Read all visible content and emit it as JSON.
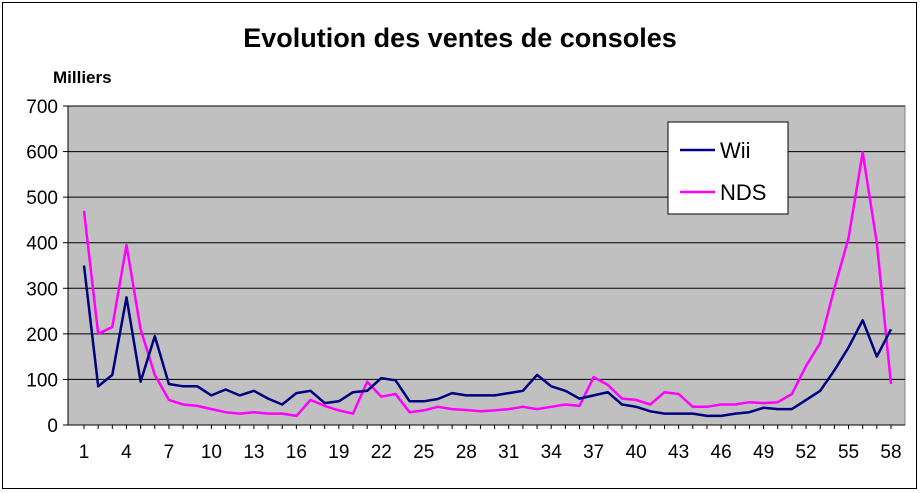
{
  "chart_data": {
    "type": "line",
    "title": "Evolution des ventes de consoles",
    "ylabel": "Milliers",
    "xlabel": "",
    "ylim": [
      0,
      700
    ],
    "yticks": [
      0,
      100,
      200,
      300,
      400,
      500,
      600,
      700
    ],
    "x": [
      1,
      2,
      3,
      4,
      5,
      6,
      7,
      8,
      9,
      10,
      11,
      12,
      13,
      14,
      15,
      16,
      17,
      18,
      19,
      20,
      21,
      22,
      23,
      24,
      25,
      26,
      27,
      28,
      29,
      30,
      31,
      32,
      33,
      34,
      35,
      36,
      37,
      38,
      39,
      40,
      41,
      42,
      43,
      44,
      45,
      46,
      47,
      48,
      49,
      50,
      51,
      52,
      53,
      54,
      55,
      56,
      57,
      58
    ],
    "xticks": [
      1,
      4,
      7,
      10,
      13,
      16,
      19,
      22,
      25,
      28,
      31,
      34,
      37,
      40,
      43,
      46,
      49,
      52,
      55,
      58
    ],
    "grid": true,
    "legend_position": "top-right",
    "series": [
      {
        "name": "Wii",
        "color": "#000080",
        "values": [
          350,
          85,
          110,
          280,
          95,
          195,
          90,
          85,
          85,
          65,
          78,
          65,
          75,
          58,
          45,
          70,
          75,
          48,
          52,
          72,
          75,
          103,
          98,
          52,
          52,
          57,
          70,
          65,
          65,
          65,
          70,
          75,
          110,
          85,
          75,
          58,
          65,
          72,
          45,
          40,
          30,
          25,
          25,
          25,
          20,
          20,
          25,
          28,
          38,
          35,
          35,
          55,
          75,
          120,
          170,
          230,
          150,
          210
        ]
      },
      {
        "name": "NDS",
        "color": "#ff00ff",
        "values": [
          470,
          200,
          215,
          395,
          210,
          110,
          55,
          45,
          42,
          35,
          28,
          25,
          28,
          25,
          25,
          20,
          55,
          42,
          32,
          25,
          95,
          62,
          68,
          28,
          32,
          40,
          35,
          33,
          30,
          32,
          35,
          40,
          35,
          40,
          45,
          42,
          105,
          88,
          58,
          55,
          45,
          72,
          68,
          40,
          40,
          45,
          45,
          50,
          48,
          50,
          68,
          130,
          180,
          300,
          410,
          598,
          400,
          90
        ]
      }
    ]
  }
}
